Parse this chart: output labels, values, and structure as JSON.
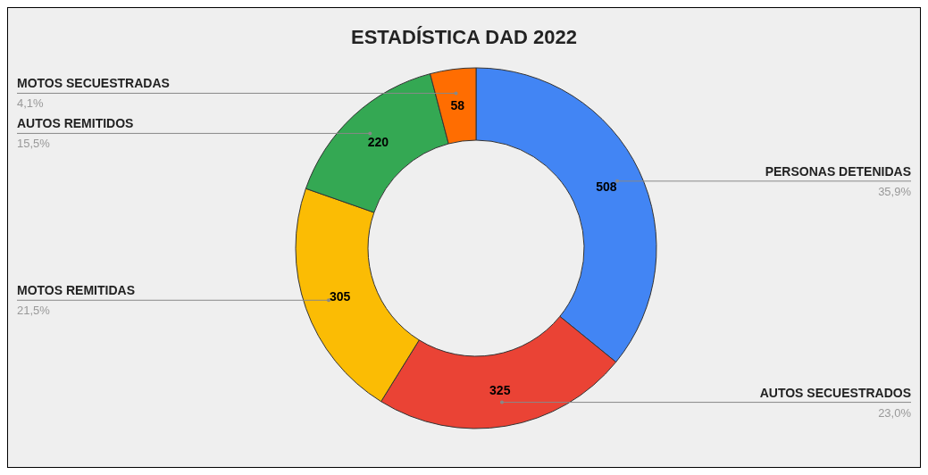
{
  "chart_data": {
    "type": "donut",
    "title": "ESTADÍSTICA DAD 2022",
    "categories": [
      "PERSONAS DETENIDAS",
      "AUTOS SECUESTRADOS",
      "MOTOS REMITIDAS",
      "AUTOS REMITIDOS",
      "MOTOS SECUESTRADAS"
    ],
    "values": [
      508,
      325,
      305,
      220,
      58
    ],
    "colors": [
      "#4285f4",
      "#ea4335",
      "#fbbc04",
      "#34a853",
      "#ff6d01"
    ],
    "annotations": [
      {
        "text": "35,9%",
        "x": "PERSONAS DETENIDAS"
      },
      {
        "text": "23,0%",
        "x": "AUTOS SECUESTRADOS"
      },
      {
        "text": "21,5%",
        "x": "MOTOS REMITIDAS"
      },
      {
        "text": "15,5%",
        "x": "AUTOS REMITIDOS"
      },
      {
        "text": "4,1%",
        "x": "MOTOS SECUESTRADAS"
      }
    ],
    "data_labels": true,
    "legend": false
  }
}
